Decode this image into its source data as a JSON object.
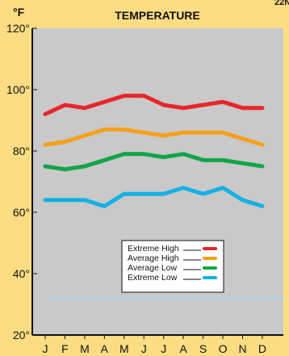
{
  "chart_data": {
    "type": "line",
    "title": "TEMPERATURE",
    "corner_mark": "22N",
    "ylabel": "°F",
    "categories": [
      "J",
      "F",
      "M",
      "A",
      "M",
      "J",
      "J",
      "A",
      "S",
      "O",
      "N",
      "D"
    ],
    "ylim": [
      20,
      120
    ],
    "yticks": [
      {
        "value": 20,
        "label": "20°"
      },
      {
        "value": 40,
        "label": "40°"
      },
      {
        "value": 60,
        "label": "60°"
      },
      {
        "value": 80,
        "label": "80°"
      },
      {
        "value": 100,
        "label": "100°"
      },
      {
        "value": 120,
        "label": "120°"
      }
    ],
    "grid": false,
    "legend_position": "lower-center",
    "series": [
      {
        "name": "Extreme High",
        "color": "#e8262a",
        "values": [
          92,
          95,
          94,
          96,
          98,
          98,
          95,
          94,
          95,
          96,
          94,
          94
        ]
      },
      {
        "name": "Average High",
        "color": "#f6a01a",
        "values": [
          82,
          83,
          85,
          87,
          87,
          86,
          85,
          86,
          86,
          86,
          84,
          82
        ]
      },
      {
        "name": "Average Low",
        "color": "#13a44a",
        "values": [
          75,
          74,
          75,
          77,
          79,
          79,
          78,
          79,
          77,
          77,
          76,
          75
        ]
      },
      {
        "name": "Extreme Low",
        "color": "#16b0e6",
        "values": [
          64,
          64,
          64,
          62,
          66,
          66,
          66,
          68,
          66,
          68,
          64,
          62
        ]
      }
    ],
    "reference_line": {
      "value": 32,
      "color": "#a9d9f3"
    },
    "colors": {
      "background": "#fcdd83",
      "plot_background": "#c9c9c9",
      "axis": "#111111"
    }
  }
}
